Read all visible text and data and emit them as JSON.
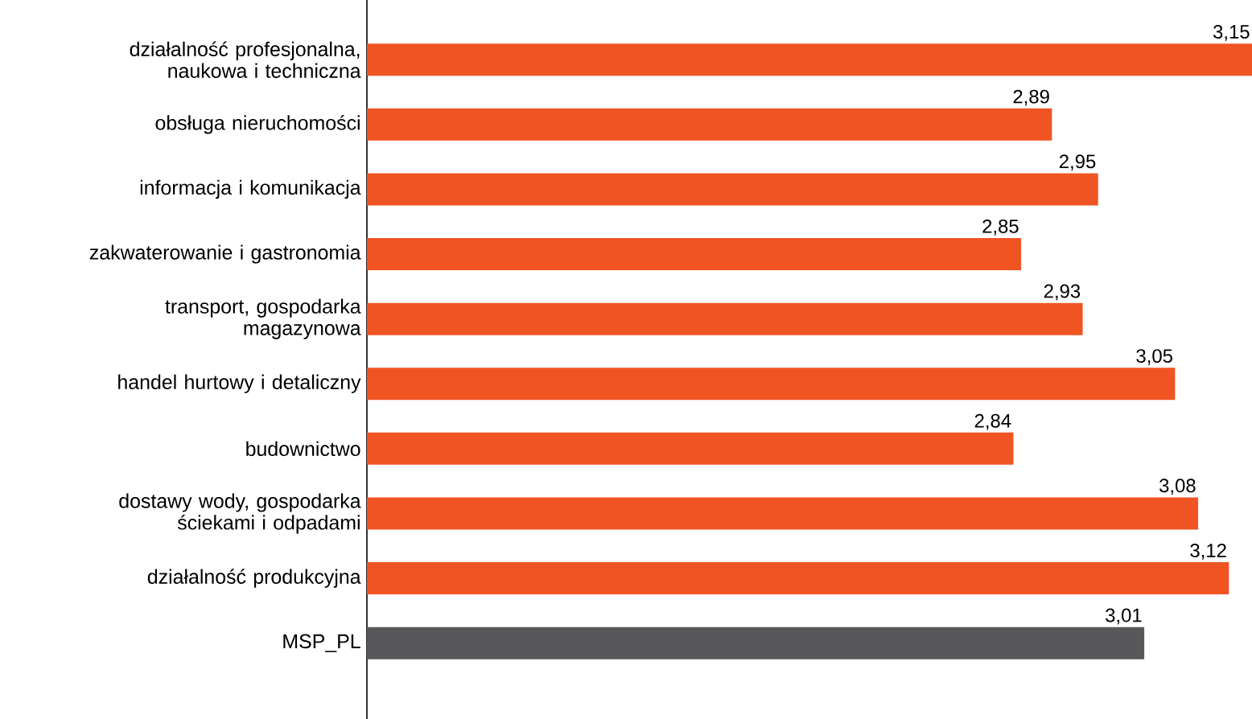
{
  "chart_data": {
    "type": "bar",
    "orientation": "horizontal",
    "categories": [
      "działalność profesjonalna, naukowa i techniczna",
      "obsługa nieruchomości",
      "informacja i komunikacja",
      "zakwaterowanie i gastronomia",
      "transport, gospodarka magazynowa",
      "handel hurtowy i detaliczny",
      "budownictwo",
      "dostawy wody, gospodarka ściekami i odpadami",
      "działalność produkcyjna",
      "MSP_PL"
    ],
    "values": [
      3.15,
      2.89,
      2.95,
      2.85,
      2.93,
      3.05,
      2.84,
      3.08,
      3.12,
      3.01
    ],
    "value_labels": [
      "3,15",
      "2,89",
      "2,95",
      "2,85",
      "2,93",
      "3,05",
      "2,84",
      "3,08",
      "3,12",
      "3,01"
    ],
    "colors": [
      "#f05423",
      "#f05423",
      "#f05423",
      "#f05423",
      "#f05423",
      "#f05423",
      "#f05423",
      "#f05423",
      "#f05423",
      "#58585a"
    ],
    "xlim": [
      2,
      3.15
    ]
  }
}
